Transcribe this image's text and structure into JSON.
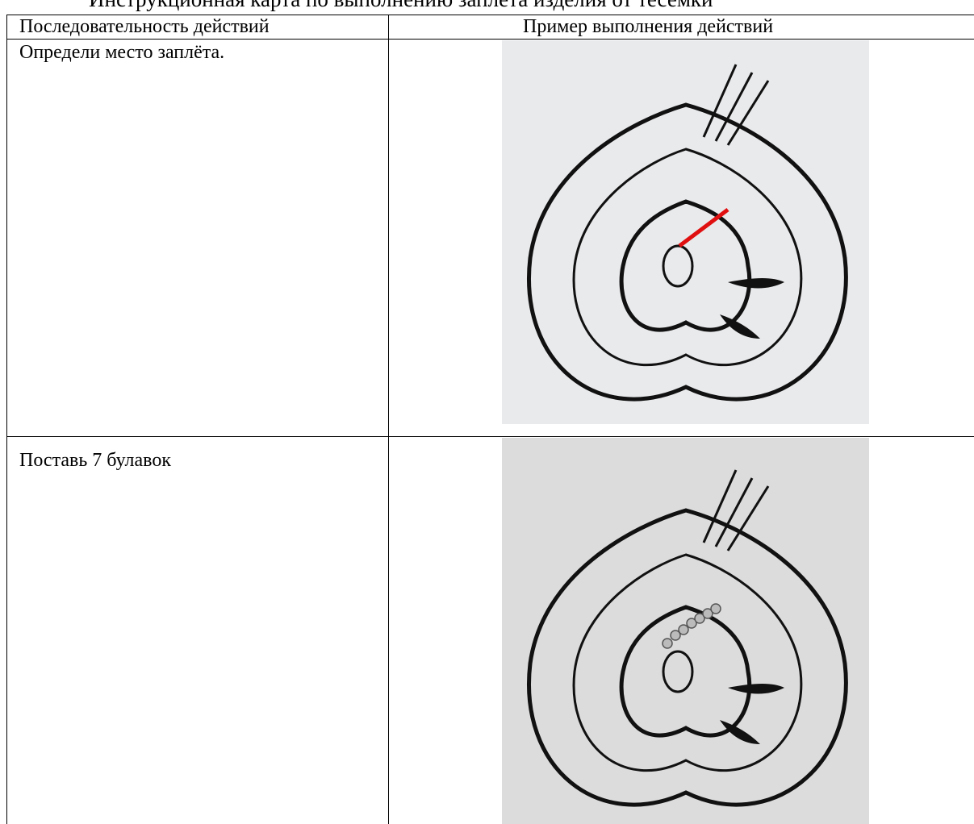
{
  "header": {
    "title": "Инструкционная карта по выполнению заплета изделия от тесемки"
  },
  "table": {
    "headers": [
      "Последовательность действий",
      "Пример выполнения действий"
    ],
    "rows": [
      [
        "Определи место заплёта."
      ],
      [
        "Поставь 7 булавок"
      ]
    ]
  }
}
